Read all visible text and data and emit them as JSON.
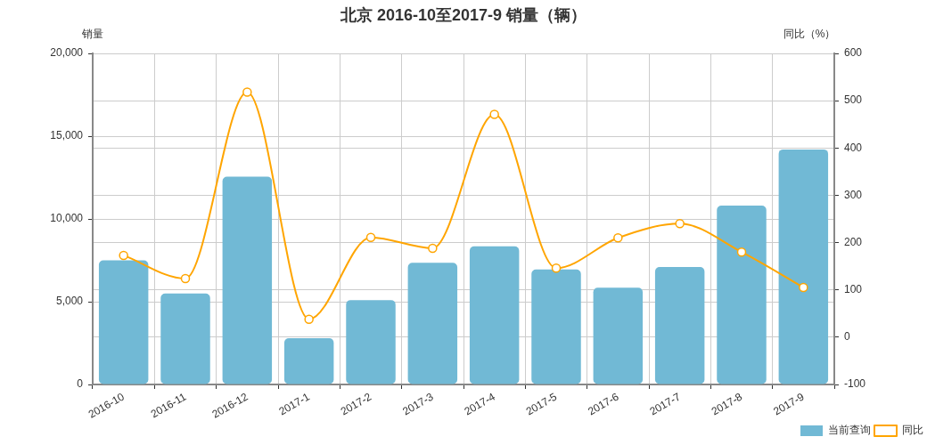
{
  "chart_data": {
    "type": "bar",
    "title": "北京 2016-10至2017-9 销量（辆）",
    "ylabel": "销量",
    "y2label": "同比（%）",
    "categories": [
      "2016-10",
      "2016-11",
      "2016-12",
      "2017-1",
      "2017-2",
      "2017-3",
      "2017-4",
      "2017-5",
      "2017-6",
      "2017-7",
      "2017-8",
      "2017-9"
    ],
    "series": [
      {
        "name": "当前查询",
        "color": "#71b9d5",
        "values": [
          7500,
          5500,
          12550,
          2800,
          5100,
          7350,
          8350,
          6950,
          5850,
          7100,
          10800,
          14200
        ]
      },
      {
        "name": "同比",
        "type": "line",
        "axis": "y2",
        "color": "#ffa500",
        "values": [
          173,
          124,
          518,
          38,
          211,
          188,
          471,
          146,
          210,
          240,
          180,
          105
        ]
      }
    ],
    "ylim": [
      0,
      20000
    ],
    "yticks": [
      0,
      {
        "value": 5000,
        "label": "5,000"
      },
      {
        "value": 10000,
        "label": "10,000"
      },
      {
        "value": 15000,
        "label": "15,000"
      },
      {
        "value": 20000,
        "label": "20,000"
      }
    ],
    "y2lim": [
      -100,
      600
    ],
    "y2ticks": [
      -100,
      0,
      100,
      200,
      300,
      400,
      500,
      600
    ],
    "grid": true,
    "legend": "bottom right",
    "marker": "circle"
  }
}
